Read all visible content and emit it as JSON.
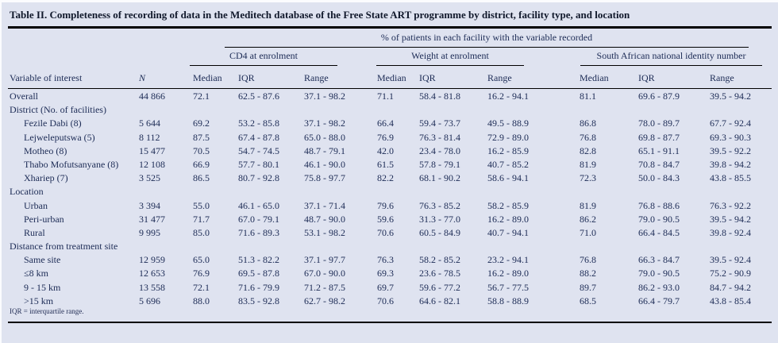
{
  "colors": {
    "background": "#dfe3f0",
    "text": "#1c2b55",
    "rule": "#000000"
  },
  "table": {
    "title": "Table II. Completeness of recording of data in the Meditech database of the Free State ART programme by district, facility type, and location",
    "spanner": "% of patients in each facility with the variable recorded",
    "groups": [
      "CD4 at enrolment",
      "Weight at enrolment",
      "South African national identity number"
    ],
    "columns": [
      "Variable of interest",
      "N",
      "Median",
      "IQR",
      "Range",
      "Median",
      "IQR",
      "Range",
      "Median",
      "IQR",
      "Range"
    ],
    "footnote": "IQR = interquartile range.",
    "rows": [
      {
        "type": "data",
        "indent": false,
        "label": "Overall",
        "values": [
          "44 866",
          "72.1",
          "62.5 - 87.6",
          "37.1 - 98.2",
          "71.1",
          "58.4 - 81.8",
          "16.2 - 94.1",
          "81.1",
          "69.6 - 87.9",
          "39.5 - 94.2"
        ]
      },
      {
        "type": "section",
        "indent": false,
        "label": "District (No. of facilities)",
        "values": []
      },
      {
        "type": "data",
        "indent": true,
        "label": "Fezile Dabi (8)",
        "values": [
          "5 644",
          "69.2",
          "53.2 - 85.8",
          "37.1 - 98.2",
          "66.4",
          "59.4 - 73.7",
          "49.5 - 88.9",
          "86.8",
          "78.0 - 89.7",
          "67.7 - 92.4"
        ]
      },
      {
        "type": "data",
        "indent": true,
        "label": "Lejweleputswa (5)",
        "values": [
          "8 112",
          "87.5",
          "67.4 - 87.8",
          "65.0 - 88.0",
          "76.9",
          "76.3 - 81.4",
          "72.9 - 89.0",
          "76.8",
          "69.8 - 87.7",
          "69.3 - 90.3"
        ]
      },
      {
        "type": "data",
        "indent": true,
        "label": "Motheo (8)",
        "values": [
          "15 477",
          "70.5",
          "54.7 - 74.5",
          "48.7 - 79.1",
          "42.0",
          "23.4 - 78.0",
          "16.2 - 85.9",
          "82.8",
          "65.1 - 91.1",
          "39.5 - 92.2"
        ]
      },
      {
        "type": "data",
        "indent": true,
        "label": "Thabo Mofutsanyane (8)",
        "values": [
          "12 108",
          "66.9",
          "57.7 - 80.1",
          "46.1 - 90.0",
          "61.5",
          "57.8 - 79.1",
          "40.7 - 85.2",
          "81.9",
          "70.8 - 84.7",
          "39.8 - 94.2"
        ]
      },
      {
        "type": "data",
        "indent": true,
        "label": "Xhariep (7)",
        "values": [
          "3 525",
          "86.5",
          "80.7 - 92.8",
          "75.8 - 97.7",
          "82.2",
          "68.1 - 90.2",
          "58.6 - 94.1",
          "72.3",
          "50.0 - 84.3",
          "43.8 - 85.5"
        ]
      },
      {
        "type": "section",
        "indent": false,
        "label": "Location",
        "values": []
      },
      {
        "type": "data",
        "indent": true,
        "label": "Urban",
        "values": [
          "3 394",
          "55.0",
          "46.1 - 65.0",
          "37.1 - 71.4",
          "79.6",
          "76.3 - 85.2",
          "58.2 - 85.9",
          "81.9",
          "76.8 - 88.6",
          "76.3 - 92.2"
        ]
      },
      {
        "type": "data",
        "indent": true,
        "label": "Peri-urban",
        "values": [
          "31 477",
          "71.7",
          "67.0 - 79.1",
          "48.7 - 90.0",
          "59.6",
          "31.3 - 77.0",
          "16.2 - 89.0",
          "86.2",
          "79.0 - 90.5",
          "39.5 - 94.2"
        ]
      },
      {
        "type": "data",
        "indent": true,
        "label": "Rural",
        "values": [
          "9 995",
          "85.0",
          "71.6 - 89.3",
          "53.1 - 98.2",
          "70.6",
          "60.5 - 84.9",
          "40.7 - 94.1",
          "71.0",
          "66.4 - 84.5",
          "39.8 - 92.4"
        ]
      },
      {
        "type": "section",
        "indent": false,
        "label": "Distance from treatment site",
        "values": []
      },
      {
        "type": "data",
        "indent": true,
        "label": "Same site",
        "values": [
          "12 959",
          "65.0",
          "51.3 - 82.2",
          "37.1 - 97.7",
          "76.3",
          "58.2 - 85.2",
          "23.2 - 94.1",
          "76.8",
          "66.3 - 84.7",
          "39.5 - 92.4"
        ]
      },
      {
        "type": "data",
        "indent": true,
        "label": "≤8 km",
        "values": [
          "12 653",
          "76.9",
          "69.5 - 87.8",
          "67.0 - 90.0",
          "69.3",
          "23.6 - 78.5",
          "16.2 - 89.0",
          "88.2",
          "79.0 - 90.5",
          "75.2 - 90.9"
        ]
      },
      {
        "type": "data",
        "indent": true,
        "label": "9 - 15 km",
        "values": [
          "13 558",
          "72.1",
          "71.6 - 79.9",
          "71.2 - 87.5",
          "69.7",
          "59.6 - 77.2",
          "56.7 - 77.5",
          "89.7",
          "86.2 - 93.0",
          "84.7 - 94.2"
        ]
      },
      {
        "type": "data",
        "indent": true,
        "label": ">15 km",
        "values": [
          "5 696",
          "88.0",
          "83.5 - 92.8",
          "62.7 - 98.2",
          "70.6",
          "64.6 - 82.1",
          "58.8 - 88.9",
          "68.5",
          "66.4 - 79.7",
          "43.8 - 85.4"
        ]
      }
    ]
  }
}
